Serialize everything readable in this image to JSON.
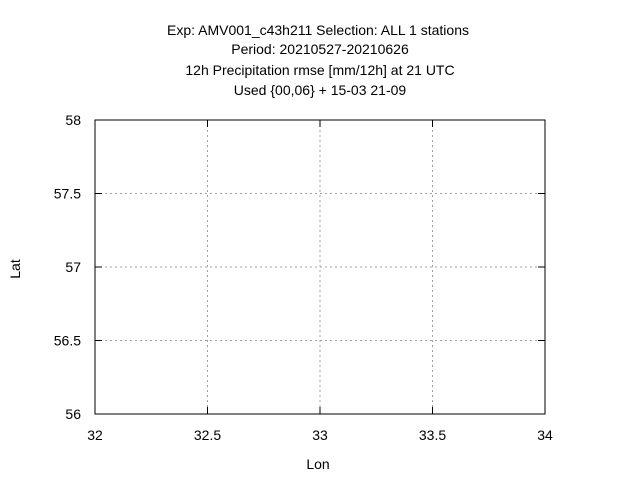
{
  "chart_data": {
    "type": "scatter",
    "title_lines": [
      "Exp: AMV001_c43h211   Selection: ALL      1 stations",
      "Period: 20210527-20210626",
      "12h Precipitation rmse [mm/12h] at  21 UTC",
      "Used {00,06} + 15-03 21-09"
    ],
    "xlabel": "Lon",
    "ylabel": "Lat",
    "xlim": [
      32,
      34
    ],
    "ylim": [
      56,
      58
    ],
    "xticks": [
      "32",
      "32.5",
      "33",
      "33.5",
      "34"
    ],
    "yticks": [
      "56",
      "56.5",
      "57",
      "57.5",
      "58"
    ],
    "grid": true,
    "series": []
  }
}
